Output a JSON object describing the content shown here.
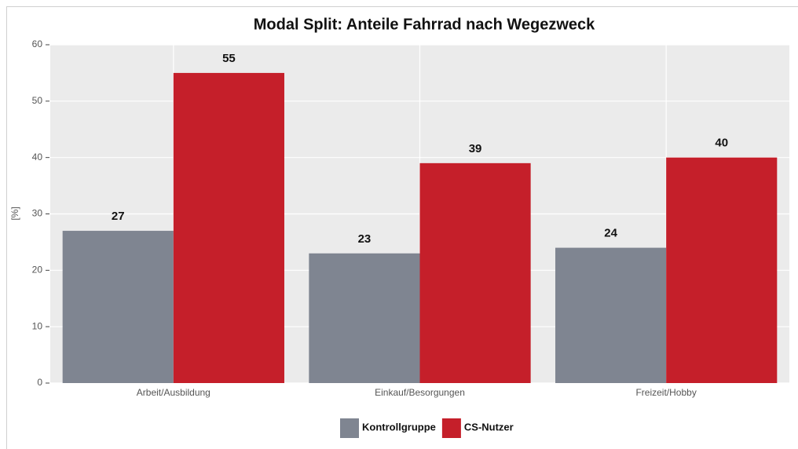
{
  "chart_data": {
    "type": "bar",
    "title": "Modal Split: Anteile Fahrrad nach Wegezweck",
    "ylabel": "[%]",
    "categories": [
      "Arbeit/Ausbildung",
      "Einkauf/Besorgungen",
      "Freizeit/Hobby"
    ],
    "series": [
      {
        "name": "Kontrollgruppe",
        "color": "#7f8591",
        "values": [
          27,
          23,
          24
        ]
      },
      {
        "name": "CS-Nutzer",
        "color": "#c51f2a",
        "values": [
          55,
          39,
          40
        ]
      }
    ],
    "ylim": [
      0,
      60
    ],
    "yticks": [
      0,
      10,
      20,
      30,
      40,
      50,
      60
    ],
    "grid": true,
    "legend": "bottom"
  }
}
